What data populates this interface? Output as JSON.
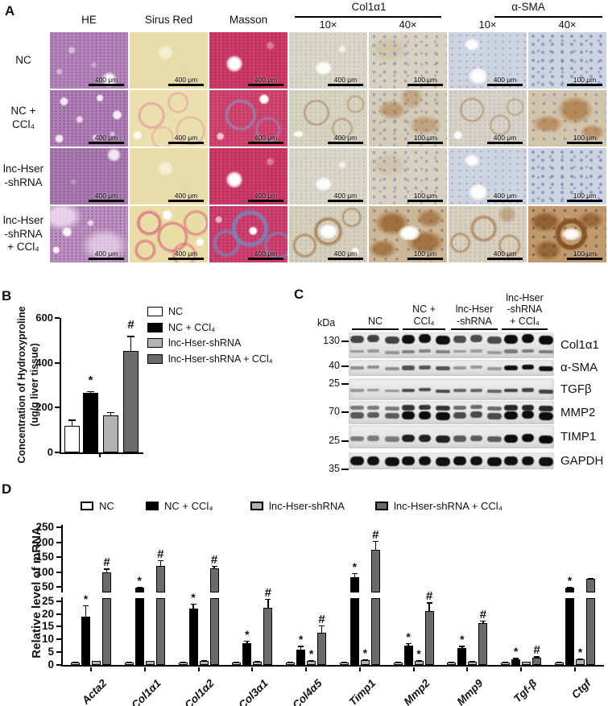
{
  "figure": {
    "panel_labels": {
      "a": "A",
      "b": "B",
      "c": "C",
      "d": "D"
    },
    "colors": {
      "bar_white": "#ffffff",
      "bar_black": "#000000",
      "bar_light_gray": "#b2b2b2",
      "bar_dark_gray": "#6b6b6b",
      "he_purple": "#b586bc",
      "sirius_yellow": "#eadfae",
      "masson_pink": "#ce3c6a",
      "ihc_brown": "#a26b35",
      "nuclei_blue": "#6f83b0",
      "blot_background": "#e6e6e6"
    }
  },
  "panel_a": {
    "single_columns": [
      "HE",
      "Sirus Red",
      "Masson"
    ],
    "column_groups": [
      {
        "label": "Col1α1",
        "mags": [
          "10×",
          "40×"
        ]
      },
      {
        "label": "α-SMA",
        "mags": [
          "10×",
          "40×"
        ]
      }
    ],
    "row_labels": [
      "NC",
      "NC +\nCCl₄",
      "lnc-Hser\n-shRNA",
      "lnc-Hser\n-shRNA\n+ CCl₄"
    ],
    "scale_labels": [
      "400 μm",
      "400 μm",
      "400 μm",
      "400 μm",
      "100 μm",
      "400 μm",
      "100 μm"
    ],
    "tiles": [
      [
        "he-a",
        "sr-a",
        "ma-a",
        "c10-a",
        "c40-a",
        "s10-a",
        "s40-a"
      ],
      [
        "he-b",
        "sr-b",
        "ma-b",
        "c10-b",
        "c40-b",
        "s10-b",
        "s40-b"
      ],
      [
        "he-c",
        "sr-a",
        "ma-a",
        "c10-a",
        "c40-a",
        "s10-a",
        "s40-a"
      ],
      [
        "he-d",
        "sr-d",
        "ma-d",
        "c10-d",
        "c40-d",
        "s10-d",
        "s40-d"
      ]
    ]
  },
  "panel_c": {
    "kda_label": "kDa",
    "group_labels": [
      "NC",
      "NC +\nCCl₄",
      "lnc-Hser\n-shRNA",
      "lnc-Hser\n-shRNA\n+ CCl₄"
    ],
    "lanes_per_group": 3,
    "strips": [
      {
        "protein": "Col1α1",
        "kda": "130",
        "levels": [
          0.7,
          1.0,
          0.65,
          1.1
        ]
      },
      {
        "protein": "α-SMA",
        "kda": "40",
        "levels": [
          0.25,
          0.6,
          0.2,
          1.0
        ]
      },
      {
        "protein": "TGFβ",
        "kda": "25",
        "levels": [
          0.2,
          0.65,
          0.5,
          0.7
        ]
      },
      {
        "protein": "MMP2",
        "kda": "70",
        "levels": [
          0.55,
          1.05,
          0.65,
          1.15
        ]
      },
      {
        "protein": "TIMP1",
        "kda": "25",
        "levels": [
          0.35,
          0.9,
          0.55,
          1.1
        ]
      },
      {
        "protein": "GAPDH",
        "kda": "35",
        "levels": [
          1.0,
          1.0,
          1.0,
          1.0
        ]
      }
    ]
  },
  "chart_data": [
    {
      "id": "hydroxyproline",
      "type": "bar",
      "ylabel": "Concentration of Hydroxyproline\n(ug/g liver tissue)",
      "ylim": [
        0,
        600
      ],
      "yticks": [
        0,
        200,
        400,
        600
      ],
      "groups": [
        "NC",
        "NC + CCl₄",
        "lnc-Hser-shRNA",
        "lnc-Hser-shRNA + CCl₄"
      ],
      "colors": [
        "#ffffff",
        "#000000",
        "#b2b2b2",
        "#6b6b6b"
      ],
      "values": [
        118,
        265,
        164,
        455
      ],
      "errors": [
        29,
        10,
        17,
        66
      ],
      "sig": [
        "",
        "*",
        "",
        "#"
      ],
      "legend_position": "right",
      "grid": false
    },
    {
      "id": "mrna",
      "type": "grouped-bar-broken-axis",
      "ylabel": "Relative level of mRNA",
      "yticks_lower": [
        0,
        5,
        10,
        15,
        20,
        25
      ],
      "yticks_upper": [
        50,
        100,
        150,
        200,
        250
      ],
      "axis_break": [
        25,
        50
      ],
      "categories": [
        "Acta2",
        "Col1α1",
        "Col1α2",
        "Col3α1",
        "Col4α5",
        "Timp1",
        "Mmp2",
        "Mmp9",
        "Tgf-β",
        "Ctgf"
      ],
      "series": [
        {
          "name": "NC",
          "color": "#ffffff",
          "values": [
            1,
            1,
            1,
            1,
            1,
            1,
            1,
            1,
            1,
            1
          ],
          "errors": [
            0.15,
            0.15,
            0.15,
            0.15,
            0.15,
            0.15,
            0.15,
            0.15,
            0.15,
            0.15
          ],
          "sig": [
            "",
            "",
            "",
            "",
            "",
            "",
            "",
            "",
            "",
            ""
          ]
        },
        {
          "name": "NC + CCl₄",
          "color": "#000000",
          "values": [
            19,
            46,
            22,
            8.5,
            6,
            82,
            7.5,
            6.5,
            2.3,
            47
          ],
          "errors": [
            4.5,
            4,
            2,
            1,
            1.5,
            15,
            1,
            1,
            0.4,
            4
          ],
          "sig": [
            "*",
            "*",
            "*",
            "*",
            "*",
            "*",
            "*",
            "*",
            "*",
            "*"
          ]
        },
        {
          "name": "lnc-Hser-shRNA",
          "color": "#b2b2b2",
          "values": [
            1.5,
            1.5,
            1.6,
            1.3,
            1.7,
            2,
            1.7,
            1.4,
            1.2,
            2.2
          ],
          "errors": [
            0.2,
            0.2,
            0.2,
            0.2,
            0.25,
            0.3,
            0.25,
            0.2,
            0.2,
            0.3
          ],
          "sig": [
            "",
            "",
            "",
            "",
            "*",
            "*",
            "*",
            "",
            "",
            "*"
          ]
        },
        {
          "name": "lnc-Hser-shRNA + CCl₄",
          "color": "#6b6b6b",
          "values": [
            98,
            120,
            112,
            22.5,
            12.5,
            175,
            21,
            16.3,
            2.9,
            76
          ],
          "errors": [
            14,
            20,
            10,
            3.5,
            3,
            30,
            3.5,
            1.2,
            0.5,
            4
          ],
          "sig": [
            "#",
            "#",
            "#",
            "#",
            "#",
            "#",
            "#",
            "#",
            "#",
            ""
          ]
        }
      ],
      "legend_position": "top",
      "grid": false
    }
  ]
}
